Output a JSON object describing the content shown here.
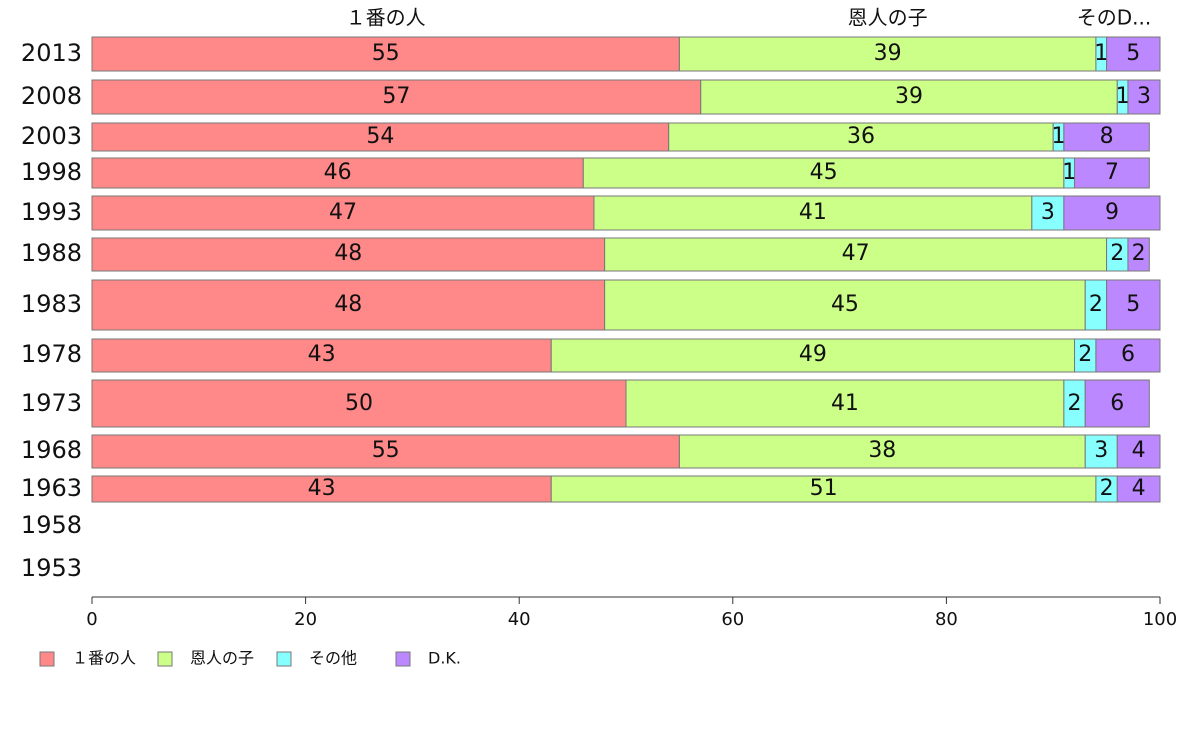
{
  "chart_data": {
    "type": "bar",
    "orientation": "horizontal",
    "stacked": true,
    "categories": [
      "2013",
      "2008",
      "2003",
      "1998",
      "1993",
      "1988",
      "1983",
      "1978",
      "1973",
      "1968",
      "1963",
      "1958",
      "1953"
    ],
    "series": [
      {
        "name": "１番の人",
        "color": "#ff8888",
        "values": [
          55,
          57,
          54,
          46,
          47,
          48,
          48,
          43,
          50,
          55,
          43,
          null,
          null
        ]
      },
      {
        "name": "恩人の子",
        "color": "#ccff88",
        "values": [
          39,
          39,
          36,
          45,
          41,
          47,
          45,
          49,
          41,
          38,
          51,
          null,
          null
        ]
      },
      {
        "name": "その他",
        "color": "#88ffff",
        "values": [
          1,
          1,
          1,
          1,
          3,
          2,
          2,
          2,
          2,
          3,
          2,
          null,
          null
        ]
      },
      {
        "name": "D.K.",
        "color": "#bb88ff",
        "values": [
          5,
          3,
          8,
          7,
          9,
          2,
          5,
          6,
          6,
          4,
          4,
          null,
          null
        ]
      }
    ],
    "top_labels": [
      "１番の人",
      "恩人の子",
      "そのD..."
    ],
    "xlim": [
      0,
      100
    ],
    "xticks": [
      "0",
      "20",
      "40",
      "60",
      "80",
      "100"
    ],
    "grid": false,
    "legend_position": "bottom-left"
  }
}
